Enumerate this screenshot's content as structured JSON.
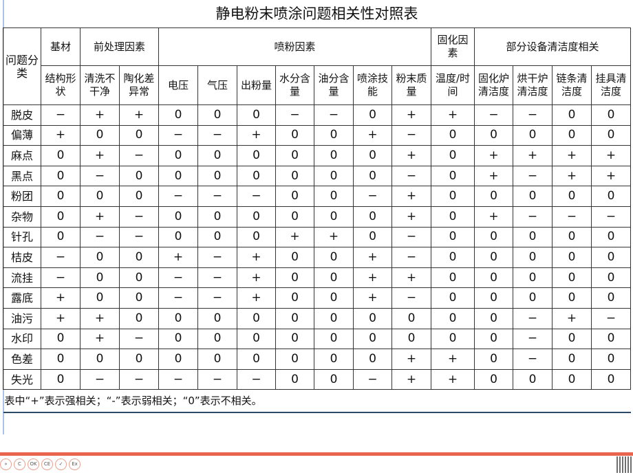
{
  "title": "静电粉末喷涂问题相关性对照表",
  "row_header": "问题分类",
  "groups": [
    {
      "label": "基材",
      "span": 1
    },
    {
      "label": "前处理因素",
      "span": 2
    },
    {
      "label": "喷粉因素",
      "span": 7
    },
    {
      "label": "固化因素",
      "span": 1
    },
    {
      "label": "部分设备清洁度相关",
      "span": 4
    }
  ],
  "columns": [
    "结构形状",
    "清洗不干净",
    "陶化差异常",
    "电压",
    "气压",
    "出粉量",
    "水分含量",
    "油分含量",
    "喷涂技能",
    "粉末质量",
    "温度/时间",
    "固化炉清洁度",
    "烘干炉清洁度",
    "链条清洁度",
    "挂具清洁度"
  ],
  "rows": [
    {
      "label": "脱皮",
      "values": [
        "−",
        "+",
        "+",
        "0",
        "0",
        "0",
        "−",
        "−",
        "0",
        "+",
        "+",
        "−",
        "−",
        "0",
        "0"
      ]
    },
    {
      "label": "偏薄",
      "values": [
        "+",
        "0",
        "0",
        "−",
        "−",
        "+",
        "0",
        "0",
        "+",
        "−",
        "0",
        "0",
        "0",
        "0",
        "0"
      ]
    },
    {
      "label": "麻点",
      "values": [
        "0",
        "+",
        "−",
        "0",
        "0",
        "0",
        "0",
        "0",
        "0",
        "+",
        "0",
        "+",
        "+",
        "+",
        "+"
      ]
    },
    {
      "label": "黑点",
      "values": [
        "0",
        "−",
        "0",
        "0",
        "0",
        "0",
        "0",
        "0",
        "0",
        "−",
        "0",
        "+",
        "−",
        "+",
        "+"
      ]
    },
    {
      "label": "粉团",
      "values": [
        "0",
        "0",
        "0",
        "−",
        "−",
        "−",
        "0",
        "0",
        "−",
        "+",
        "0",
        "0",
        "0",
        "0",
        "0"
      ]
    },
    {
      "label": "杂物",
      "values": [
        "0",
        "+",
        "−",
        "0",
        "0",
        "0",
        "0",
        "0",
        "0",
        "+",
        "0",
        "+",
        "−",
        "−",
        "−"
      ]
    },
    {
      "label": "针孔",
      "values": [
        "0",
        "−",
        "−",
        "0",
        "0",
        "0",
        "+",
        "+",
        "0",
        "−",
        "0",
        "0",
        "0",
        "0",
        "0"
      ]
    },
    {
      "label": "桔皮",
      "values": [
        "−",
        "0",
        "0",
        "+",
        "−",
        "+",
        "0",
        "0",
        "+",
        "−",
        "0",
        "0",
        "0",
        "0",
        "0"
      ]
    },
    {
      "label": "流挂",
      "values": [
        "−",
        "0",
        "0",
        "−",
        "−",
        "+",
        "0",
        "0",
        "+",
        "+",
        "0",
        "0",
        "0",
        "0",
        "0"
      ]
    },
    {
      "label": "露底",
      "values": [
        "+",
        "0",
        "0",
        "−",
        "−",
        "+",
        "0",
        "0",
        "+",
        "−",
        "0",
        "0",
        "0",
        "0",
        "0"
      ]
    },
    {
      "label": "油污",
      "values": [
        "+",
        "+",
        "0",
        "0",
        "0",
        "0",
        "0",
        "0",
        "0",
        "0",
        "0",
        "0",
        "−",
        "+",
        "−"
      ]
    },
    {
      "label": "水印",
      "values": [
        "0",
        "+",
        "−",
        "0",
        "0",
        "0",
        "0",
        "0",
        "0",
        "0",
        "0",
        "0",
        "−",
        "0",
        "0"
      ]
    },
    {
      "label": "色差",
      "values": [
        "0",
        "0",
        "0",
        "0",
        "0",
        "0",
        "0",
        "0",
        "0",
        "+",
        "+",
        "0",
        "−",
        "0",
        "0"
      ]
    },
    {
      "label": "失光",
      "values": [
        "0",
        "−",
        "−",
        "−",
        "−",
        "−",
        "0",
        "0",
        "−",
        "+",
        "+",
        "0",
        "0",
        "0",
        "0"
      ]
    }
  ],
  "note": "表中“+”表示强相关；“-”表示弱相关；“0”表示不相关。",
  "footer_icons": [
    "arrow-icon",
    "ccc-icon",
    "ok-icon",
    "ce-icon",
    "check-icon",
    "ex-icon",
    "qr-code-icon"
  ]
}
